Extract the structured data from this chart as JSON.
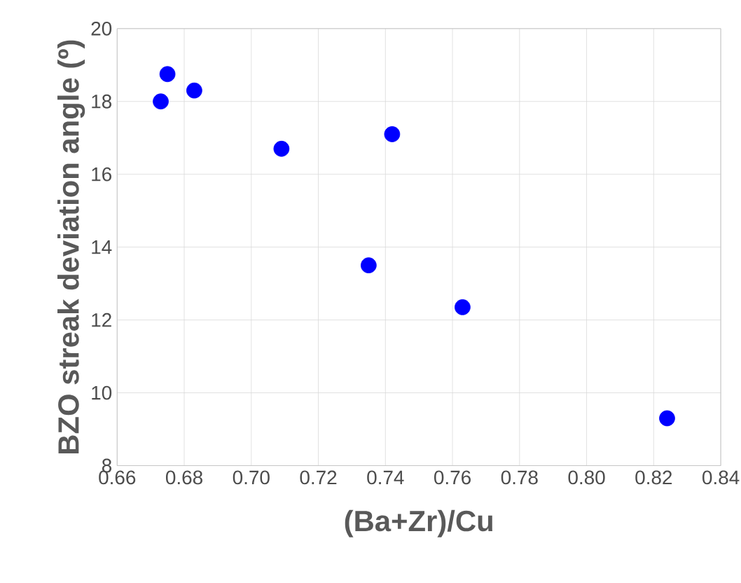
{
  "chart_data": {
    "type": "scatter",
    "xlabel": "(Ba+Zr)/Cu",
    "ylabel": "BZO streak deviation angle (º)",
    "x": [
      0.673,
      0.675,
      0.683,
      0.709,
      0.735,
      0.742,
      0.763,
      0.824
    ],
    "values": [
      18.0,
      18.75,
      18.3,
      16.7,
      13.5,
      17.1,
      12.35,
      9.3
    ],
    "color": "#0000ff",
    "marker": "circle",
    "xlim": [
      0.66,
      0.84
    ],
    "xticks": [
      0.66,
      0.68,
      {
        "value": 0.7,
        "label": "0.70"
      },
      0.72,
      0.74,
      0.76,
      0.78,
      {
        "value": 0.8,
        "label": "0.80"
      },
      0.82,
      0.84
    ],
    "ylim": [
      8,
      20
    ],
    "yticks": [
      8,
      10,
      12,
      14,
      16,
      18,
      20
    ],
    "grid": true
  }
}
